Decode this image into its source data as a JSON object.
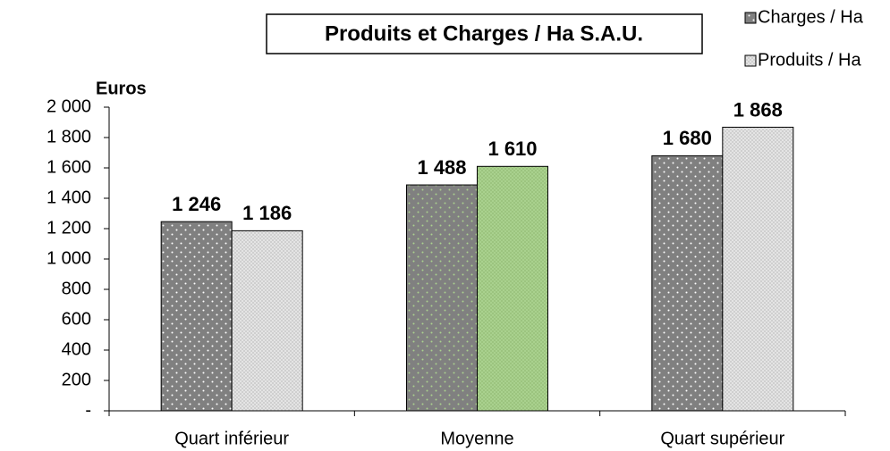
{
  "chart_data": {
    "type": "bar",
    "title": "Produits et Charges / Ha S.A.U.",
    "y_axis_label": "Euros",
    "categories": [
      "Quart inférieur",
      "Moyenne",
      "Quart supérieur"
    ],
    "series": [
      {
        "name": "Charges / Ha",
        "pattern": "dots",
        "colors": [
          "#808080",
          "#808080",
          "#808080"
        ],
        "dot_colors": [
          "#ffffff",
          "#a9d18e",
          "#ffffff"
        ],
        "values": [
          1246,
          1488,
          1680
        ],
        "value_labels": [
          "1 246",
          "1 488",
          "1 680"
        ]
      },
      {
        "name": "Produits / Ha",
        "pattern": "checker",
        "colors": [
          "#e4e4e4",
          "#a9d18e",
          "#e4e4e4"
        ],
        "dot_colors": [
          "#cfcfcf",
          "#9cc47f",
          "#cfcfcf"
        ],
        "values": [
          1186,
          1610,
          1868
        ],
        "value_labels": [
          "1 186",
          "1 610",
          "1 868"
        ]
      }
    ],
    "ylim": [
      0,
      2000
    ],
    "yticks": [
      {
        "value": 0,
        "label": "-"
      },
      200,
      400,
      600,
      800,
      {
        "value": 1000,
        "label": "1 000"
      },
      {
        "value": 1200,
        "label": "1 200"
      },
      {
        "value": 1400,
        "label": "1 400"
      },
      {
        "value": 1600,
        "label": "1 600"
      },
      {
        "value": 1800,
        "label": "1 800"
      },
      {
        "value": 2000,
        "label": "2 000"
      }
    ],
    "grid": false,
    "legend": "top-right"
  }
}
